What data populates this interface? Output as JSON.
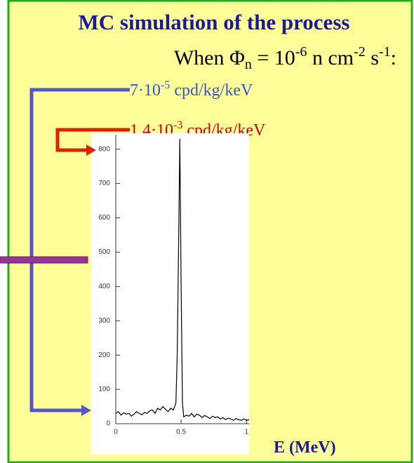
{
  "header": {
    "title": "MC simulation of the process",
    "condition": [
      "When Φ",
      "n",
      " = 10",
      "-6",
      " n cm",
      "-2",
      " s",
      "-1",
      ":"
    ]
  },
  "annotations": {
    "blue": [
      "7·10",
      "-5",
      " cpd/kg/keV"
    ],
    "red": [
      "1.4·10",
      "-3",
      " cpd/kg/keV"
    ]
  },
  "chart_data": {
    "type": "line",
    "x_label": "E (MeV)",
    "x": [
      0,
      0.02,
      0.04,
      0.06,
      0.08,
      0.1,
      0.12,
      0.14,
      0.16,
      0.18,
      0.2,
      0.22,
      0.24,
      0.26,
      0.28,
      0.3,
      0.32,
      0.34,
      0.36,
      0.38,
      0.4,
      0.42,
      0.44,
      0.46,
      0.47,
      0.48,
      0.49,
      0.5,
      0.51,
      0.52,
      0.54,
      0.56,
      0.58,
      0.6,
      0.62,
      0.64,
      0.66,
      0.68,
      0.7,
      0.72,
      0.74,
      0.76,
      0.78,
      0.8,
      0.82,
      0.84,
      0.86,
      0.88,
      0.9,
      0.92,
      0.94,
      0.96,
      0.98,
      1.0,
      1.02
    ],
    "values": [
      30,
      35,
      25,
      32,
      28,
      30,
      22,
      28,
      35,
      30,
      26,
      33,
      30,
      38,
      40,
      30,
      45,
      40,
      50,
      42,
      35,
      45,
      40,
      60,
      200,
      500,
      830,
      400,
      60,
      20,
      25,
      22,
      30,
      20,
      28,
      25,
      18,
      24,
      20,
      15,
      22,
      18,
      20,
      14,
      18,
      12,
      16,
      14,
      10,
      15,
      12,
      10,
      14,
      10,
      12
    ],
    "color": "#000000",
    "xlim": [
      0,
      1.02
    ],
    "ylim": [
      0,
      830
    ],
    "xticks": [
      0,
      0.5,
      1
    ],
    "yticks": [
      0,
      100,
      200,
      300,
      400,
      500,
      600,
      700,
      800
    ]
  }
}
